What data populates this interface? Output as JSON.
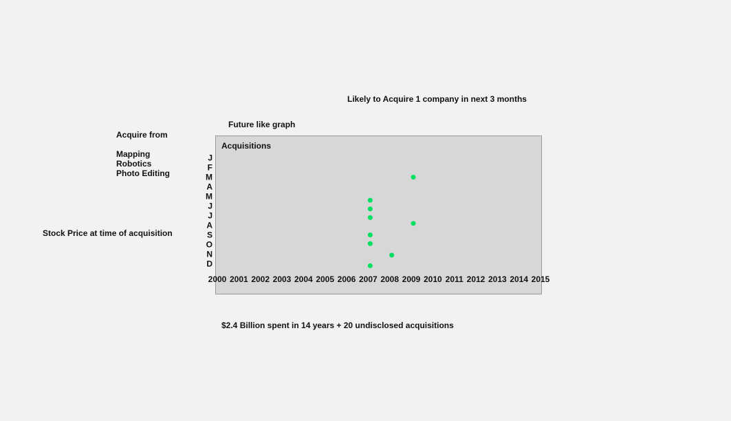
{
  "header": {
    "prediction": "Likely to Acquire 1 company in next 3 months",
    "subtitle": "Future like graph"
  },
  "sidebar": {
    "acquire_heading": "Acquire from",
    "acquire_items": [
      "Mapping",
      "Robotics",
      "Photo Editing"
    ],
    "stock_label": "Stock Price at time of acquisition"
  },
  "footer": {
    "summary": "$2.4 Billion spent in 14 years + 20 undisclosed acquisitions"
  },
  "chart_data": {
    "type": "scatter",
    "title": "Acquisitions",
    "x_categories": [
      "2000",
      "2001",
      "2002",
      "2003",
      "2004",
      "2005",
      "2006",
      "2007",
      "2008",
      "2009",
      "2010",
      "2011",
      "2012",
      "2013",
      "2014",
      "2015"
    ],
    "y_categories": [
      "J",
      "F",
      "M",
      "A",
      "M",
      "J",
      "J",
      "A",
      "S",
      "O",
      "N",
      "D"
    ],
    "point_color": "#00e060",
    "points": [
      {
        "x": "2009",
        "y_index": 2
      },
      {
        "x": "2007",
        "y_index": 4.4
      },
      {
        "x": "2007",
        "y_index": 5.3
      },
      {
        "x": "2007",
        "y_index": 6.2
      },
      {
        "x": "2009",
        "y_index": 6.8
      },
      {
        "x": "2007",
        "y_index": 8
      },
      {
        "x": "2007",
        "y_index": 8.9
      },
      {
        "x": "2008",
        "y_index": 10.1
      },
      {
        "x": "2007",
        "y_index": 11.2
      }
    ],
    "grid": false,
    "legend": "none"
  }
}
